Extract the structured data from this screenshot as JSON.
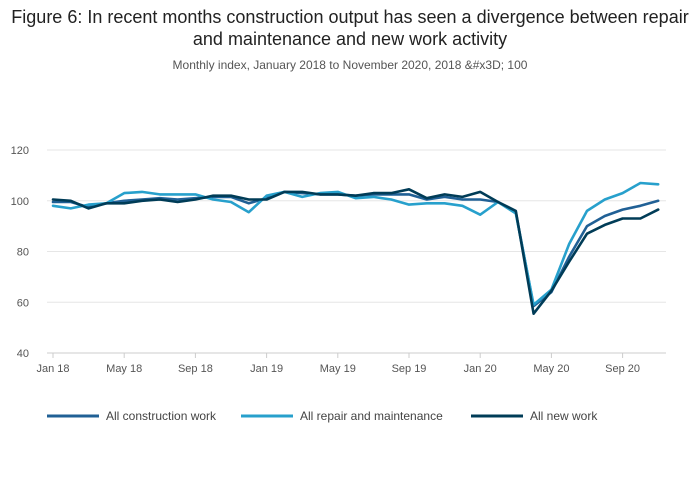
{
  "chart_data": {
    "type": "line",
    "title": "Figure 6: In recent months construction output has seen a divergence between repair and maintenance and new work activity",
    "subtitle": "Monthly index, January 2018 to November 2020, 2018 &#x3D; 100",
    "xlabel": "",
    "ylabel": "",
    "ylim": [
      40,
      120
    ],
    "yticks": [
      40,
      60,
      80,
      100,
      120
    ],
    "xticks": [
      "Jan 18",
      "May 18",
      "Sep 18",
      "Jan 19",
      "May 19",
      "Sep 19",
      "Jan 20",
      "May 20",
      "Sep 20"
    ],
    "x": [
      "Jan 18",
      "Feb 18",
      "Mar 18",
      "Apr 18",
      "May 18",
      "Jun 18",
      "Jul 18",
      "Aug 18",
      "Sep 18",
      "Oct 18",
      "Nov 18",
      "Dec 18",
      "Jan 19",
      "Feb 19",
      "Mar 19",
      "Apr 19",
      "May 19",
      "Jun 19",
      "Jul 19",
      "Aug 19",
      "Sep 19",
      "Oct 19",
      "Nov 19",
      "Dec 19",
      "Jan 20",
      "Feb 20",
      "Mar 20",
      "Apr 20",
      "May 20",
      "Jun 20",
      "Jul 20",
      "Aug 20",
      "Sep 20",
      "Oct 20",
      "Nov 20"
    ],
    "grid": true,
    "legend": "bottom",
    "series": [
      {
        "name": "All construction work",
        "color": "#206095",
        "values": [
          99.5,
          99.5,
          97.5,
          99,
          100,
          100.5,
          101,
          100.5,
          101,
          101.5,
          101.5,
          99,
          101,
          103.5,
          103,
          102.5,
          102.5,
          102,
          102.5,
          102.5,
          102.5,
          100.5,
          101.5,
          100.5,
          100.5,
          99.5,
          95.5,
          58.5,
          64,
          78,
          90,
          94,
          96.5,
          98,
          100
        ]
      },
      {
        "name": "All repair and maintenance",
        "color": "#27a0cc",
        "values": [
          98,
          97,
          98.5,
          99,
          103,
          103.5,
          102.5,
          102.5,
          102.5,
          100.5,
          99.5,
          95.5,
          102,
          103.5,
          101.5,
          103,
          103.5,
          101,
          101.5,
          100.5,
          98.5,
          99,
          99,
          98,
          94.5,
          99.5,
          95,
          59,
          65,
          83,
          96,
          100.5,
          103,
          107,
          106.5
        ]
      },
      {
        "name": "All new work",
        "color": "#003c57",
        "values": [
          100.5,
          100,
          97,
          99,
          99,
          100,
          100.5,
          99.5,
          100.5,
          102,
          102,
          100.5,
          100.5,
          103.5,
          103.5,
          102.5,
          102.5,
          102,
          103,
          103,
          104.5,
          101,
          102.5,
          101.5,
          103.5,
          99.5,
          96,
          55.5,
          64.5,
          76,
          87,
          90.5,
          93,
          93,
          96.5
        ]
      }
    ]
  }
}
